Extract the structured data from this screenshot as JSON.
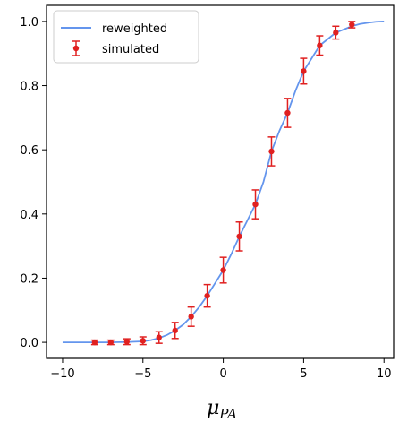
{
  "chart_data": {
    "type": "line",
    "xlabel": "μ",
    "xlabel_subscript": "PA",
    "xlim": [
      -11,
      10.6
    ],
    "ylim": [
      -0.05,
      1.05
    ],
    "xticks": [
      -10,
      -5,
      0,
      5,
      10
    ],
    "xtick_labels": [
      "−10",
      "−5",
      "0",
      "5",
      "10"
    ],
    "yticks": [
      0.0,
      0.2,
      0.4,
      0.6,
      0.8,
      1.0
    ],
    "ytick_labels": [
      "0.0",
      "0.2",
      "0.4",
      "0.6",
      "0.8",
      "1.0"
    ],
    "grid": false,
    "legend_position": "upper-left",
    "series": [
      {
        "name": "reweighted",
        "kind": "line",
        "color": "#6495ED",
        "x": [
          -10,
          -9,
          -8,
          -7,
          -6,
          -5,
          -4.5,
          -4,
          -3.5,
          -3,
          -2.5,
          -2,
          -1.5,
          -1,
          -0.5,
          0,
          0.5,
          1,
          1.5,
          2,
          2.5,
          3,
          3.5,
          4,
          4.5,
          5,
          5.5,
          6,
          6.5,
          7,
          7.5,
          8,
          8.5,
          9,
          9.5,
          10
        ],
        "y": [
          0.0,
          0.0,
          0.0,
          0.0,
          0.001,
          0.003,
          0.007,
          0.013,
          0.023,
          0.037,
          0.055,
          0.08,
          0.11,
          0.145,
          0.185,
          0.225,
          0.275,
          0.33,
          0.38,
          0.43,
          0.5,
          0.595,
          0.66,
          0.715,
          0.785,
          0.845,
          0.885,
          0.925,
          0.945,
          0.965,
          0.975,
          0.985,
          0.992,
          0.996,
          0.999,
          1.0
        ]
      },
      {
        "name": "simulated",
        "kind": "errorbar",
        "color": "#E02020",
        "x": [
          -8,
          -7,
          -6,
          -5,
          -4,
          -3,
          -2,
          -1,
          0,
          1,
          2,
          3,
          4,
          5,
          6,
          7,
          8
        ],
        "y": [
          0.0,
          0.0,
          0.002,
          0.005,
          0.015,
          0.037,
          0.08,
          0.145,
          0.225,
          0.33,
          0.43,
          0.595,
          0.715,
          0.845,
          0.925,
          0.965,
          0.99
        ],
        "err": [
          0.007,
          0.007,
          0.009,
          0.012,
          0.018,
          0.025,
          0.03,
          0.035,
          0.04,
          0.045,
          0.045,
          0.045,
          0.045,
          0.04,
          0.03,
          0.02,
          0.01
        ]
      }
    ]
  }
}
